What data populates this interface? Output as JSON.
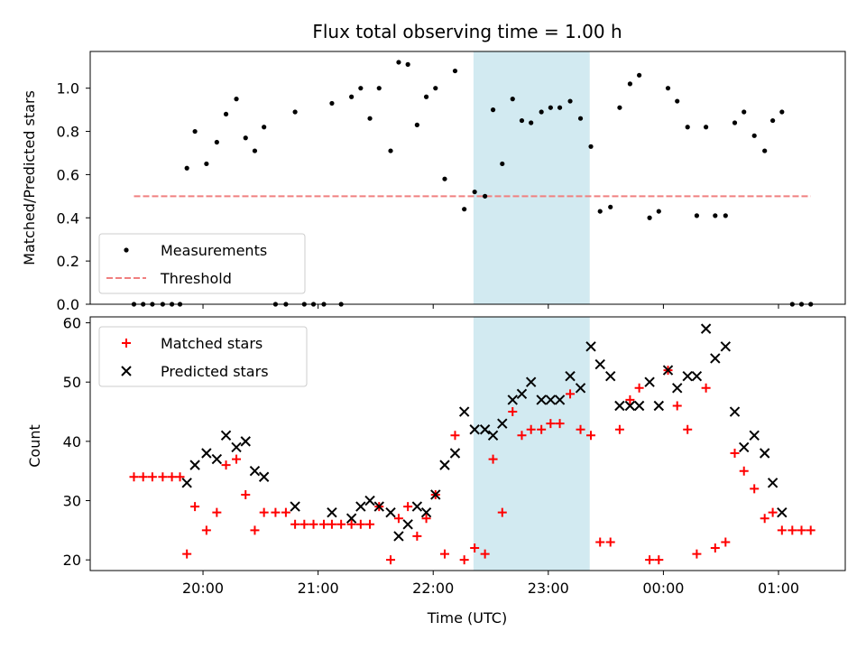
{
  "chart_data": [
    {
      "type": "scatter",
      "title": "Flux total observing time = 1.00 h",
      "xlabel": "",
      "ylabel": "Matched/Predicted stars",
      "ylim": [
        0,
        1.17
      ],
      "yticks": [
        "0.0",
        "0.2",
        "0.4",
        "0.6",
        "0.8",
        "1.0"
      ],
      "ytick_values": [
        0,
        0.2,
        0.4,
        0.6,
        0.8,
        1.0
      ],
      "xlim_hours": [
        19.02,
        25.58
      ],
      "shaded_span_hours": [
        22.35,
        23.36
      ],
      "shaded_color": "#add8e6",
      "legend": {
        "position": "lower left",
        "entries": [
          "Measurements",
          "Threshold"
        ]
      },
      "series": [
        {
          "name": "Measurements",
          "marker": "dot",
          "color": "#000000",
          "points": [
            [
              19.4,
              0.0
            ],
            [
              19.48,
              0.0
            ],
            [
              19.56,
              0.0
            ],
            [
              19.65,
              0.0
            ],
            [
              19.73,
              0.0
            ],
            [
              19.8,
              0.0
            ],
            [
              19.86,
              0.63
            ],
            [
              19.93,
              0.8
            ],
            [
              20.03,
              0.65
            ],
            [
              20.12,
              0.75
            ],
            [
              20.2,
              0.88
            ],
            [
              20.29,
              0.95
            ],
            [
              20.37,
              0.77
            ],
            [
              20.45,
              0.71
            ],
            [
              20.53,
              0.82
            ],
            [
              20.63,
              0.0
            ],
            [
              20.72,
              0.0
            ],
            [
              20.8,
              0.89
            ],
            [
              20.88,
              0.0
            ],
            [
              20.96,
              0.0
            ],
            [
              21.05,
              0.0
            ],
            [
              21.12,
              0.93
            ],
            [
              21.2,
              0.0
            ],
            [
              21.29,
              0.96
            ],
            [
              21.37,
              1.0
            ],
            [
              21.45,
              0.86
            ],
            [
              21.53,
              1.0
            ],
            [
              21.63,
              0.71
            ],
            [
              21.7,
              1.12
            ],
            [
              21.78,
              1.11
            ],
            [
              21.86,
              0.83
            ],
            [
              21.94,
              0.96
            ],
            [
              22.02,
              1.0
            ],
            [
              22.1,
              0.58
            ],
            [
              22.19,
              1.08
            ],
            [
              22.27,
              0.44
            ],
            [
              22.36,
              0.52
            ],
            [
              22.45,
              0.5
            ],
            [
              22.52,
              0.9
            ],
            [
              22.6,
              0.65
            ],
            [
              22.69,
              0.95
            ],
            [
              22.77,
              0.85
            ],
            [
              22.85,
              0.84
            ],
            [
              22.94,
              0.89
            ],
            [
              23.02,
              0.91
            ],
            [
              23.1,
              0.91
            ],
            [
              23.19,
              0.94
            ],
            [
              23.28,
              0.86
            ],
            [
              23.37,
              0.73
            ],
            [
              23.45,
              0.43
            ],
            [
              23.54,
              0.45
            ],
            [
              23.62,
              0.91
            ],
            [
              23.71,
              1.02
            ],
            [
              23.79,
              1.06
            ],
            [
              23.88,
              0.4
            ],
            [
              23.96,
              0.43
            ],
            [
              24.04,
              1.0
            ],
            [
              24.12,
              0.94
            ],
            [
              24.21,
              0.82
            ],
            [
              24.29,
              0.41
            ],
            [
              24.37,
              0.82
            ],
            [
              24.45,
              0.41
            ],
            [
              24.54,
              0.41
            ],
            [
              24.62,
              0.84
            ],
            [
              24.7,
              0.89
            ],
            [
              24.79,
              0.78
            ],
            [
              24.88,
              0.71
            ],
            [
              24.95,
              0.85
            ],
            [
              25.03,
              0.89
            ],
            [
              25.12,
              0.0
            ],
            [
              25.2,
              0.0
            ],
            [
              25.28,
              0.0
            ]
          ]
        },
        {
          "name": "Threshold",
          "marker": "dashed-line",
          "color": "#f08080",
          "x": [
            19.4,
            25.28
          ],
          "y": [
            0.5,
            0.5
          ]
        }
      ]
    },
    {
      "type": "scatter",
      "xlabel": "Time (UTC)",
      "ylabel": "Count",
      "ylim": [
        18.2,
        61
      ],
      "yticks": [
        "20",
        "30",
        "40",
        "50",
        "60"
      ],
      "ytick_values": [
        20,
        30,
        40,
        50,
        60
      ],
      "xlim_hours": [
        19.02,
        25.58
      ],
      "xticks": [
        "20:00",
        "21:00",
        "22:00",
        "23:00",
        "00:00",
        "01:00"
      ],
      "xtick_hours": [
        20,
        21,
        22,
        23,
        24,
        25
      ],
      "shaded_span_hours": [
        22.35,
        23.36
      ],
      "shaded_color": "#add8e6",
      "legend": {
        "position": "upper left",
        "entries": [
          "Matched stars",
          "Predicted stars"
        ]
      },
      "series": [
        {
          "name": "Matched stars",
          "marker": "plus",
          "color": "#ff0000",
          "points": [
            [
              19.4,
              34
            ],
            [
              19.48,
              34
            ],
            [
              19.56,
              34
            ],
            [
              19.65,
              34
            ],
            [
              19.73,
              34
            ],
            [
              19.8,
              34
            ],
            [
              19.86,
              21
            ],
            [
              19.93,
              29
            ],
            [
              20.03,
              25
            ],
            [
              20.12,
              28
            ],
            [
              20.2,
              36
            ],
            [
              20.29,
              37
            ],
            [
              20.37,
              31
            ],
            [
              20.45,
              25
            ],
            [
              20.53,
              28
            ],
            [
              20.63,
              28
            ],
            [
              20.72,
              28
            ],
            [
              20.8,
              26
            ],
            [
              20.88,
              26
            ],
            [
              20.96,
              26
            ],
            [
              21.05,
              26
            ],
            [
              21.12,
              26
            ],
            [
              21.2,
              26
            ],
            [
              21.29,
              26
            ],
            [
              21.37,
              26
            ],
            [
              21.45,
              26
            ],
            [
              21.53,
              29
            ],
            [
              21.63,
              20
            ],
            [
              21.7,
              27
            ],
            [
              21.78,
              29
            ],
            [
              21.86,
              24
            ],
            [
              21.94,
              27
            ],
            [
              22.02,
              31
            ],
            [
              22.1,
              21
            ],
            [
              22.19,
              41
            ],
            [
              22.27,
              20
            ],
            [
              22.36,
              22
            ],
            [
              22.45,
              21
            ],
            [
              22.52,
              37
            ],
            [
              22.6,
              28
            ],
            [
              22.69,
              45
            ],
            [
              22.77,
              41
            ],
            [
              22.85,
              42
            ],
            [
              22.94,
              42
            ],
            [
              23.02,
              43
            ],
            [
              23.1,
              43
            ],
            [
              23.19,
              48
            ],
            [
              23.28,
              42
            ],
            [
              23.37,
              41
            ],
            [
              23.45,
              23
            ],
            [
              23.54,
              23
            ],
            [
              23.62,
              42
            ],
            [
              23.71,
              47
            ],
            [
              23.79,
              49
            ],
            [
              23.88,
              20
            ],
            [
              23.96,
              20
            ],
            [
              24.04,
              52
            ],
            [
              24.12,
              46
            ],
            [
              24.21,
              42
            ],
            [
              24.29,
              21
            ],
            [
              24.37,
              49
            ],
            [
              24.45,
              22
            ],
            [
              24.54,
              23
            ],
            [
              24.62,
              38
            ],
            [
              24.7,
              35
            ],
            [
              24.79,
              32
            ],
            [
              24.88,
              27
            ],
            [
              24.95,
              28
            ],
            [
              25.03,
              25
            ],
            [
              25.12,
              25
            ],
            [
              25.2,
              25
            ],
            [
              25.28,
              25
            ]
          ]
        },
        {
          "name": "Predicted stars",
          "marker": "x",
          "color": "#000000",
          "points": [
            [
              19.86,
              33
            ],
            [
              19.93,
              36
            ],
            [
              20.03,
              38
            ],
            [
              20.12,
              37
            ],
            [
              20.2,
              41
            ],
            [
              20.29,
              39
            ],
            [
              20.37,
              40
            ],
            [
              20.45,
              35
            ],
            [
              20.53,
              34
            ],
            [
              20.8,
              29
            ],
            [
              21.12,
              28
            ],
            [
              21.29,
              27
            ],
            [
              21.37,
              29
            ],
            [
              21.45,
              30
            ],
            [
              21.53,
              29
            ],
            [
              21.63,
              28
            ],
            [
              21.7,
              24
            ],
            [
              21.78,
              26
            ],
            [
              21.86,
              29
            ],
            [
              21.94,
              28
            ],
            [
              22.02,
              31
            ],
            [
              22.1,
              36
            ],
            [
              22.19,
              38
            ],
            [
              22.27,
              45
            ],
            [
              22.36,
              42
            ],
            [
              22.45,
              42
            ],
            [
              22.52,
              41
            ],
            [
              22.6,
              43
            ],
            [
              22.69,
              47
            ],
            [
              22.77,
              48
            ],
            [
              22.85,
              50
            ],
            [
              22.94,
              47
            ],
            [
              23.02,
              47
            ],
            [
              23.1,
              47
            ],
            [
              23.19,
              51
            ],
            [
              23.28,
              49
            ],
            [
              23.37,
              56
            ],
            [
              23.45,
              53
            ],
            [
              23.54,
              51
            ],
            [
              23.62,
              46
            ],
            [
              23.71,
              46
            ],
            [
              23.79,
              46
            ],
            [
              23.88,
              50
            ],
            [
              23.96,
              46
            ],
            [
              24.04,
              52
            ],
            [
              24.12,
              49
            ],
            [
              24.21,
              51
            ],
            [
              24.29,
              51
            ],
            [
              24.37,
              59
            ],
            [
              24.45,
              54
            ],
            [
              24.54,
              56
            ],
            [
              24.62,
              45
            ],
            [
              24.7,
              39
            ],
            [
              24.79,
              41
            ],
            [
              24.88,
              38
            ],
            [
              24.95,
              33
            ],
            [
              25.03,
              28
            ]
          ]
        }
      ]
    }
  ]
}
